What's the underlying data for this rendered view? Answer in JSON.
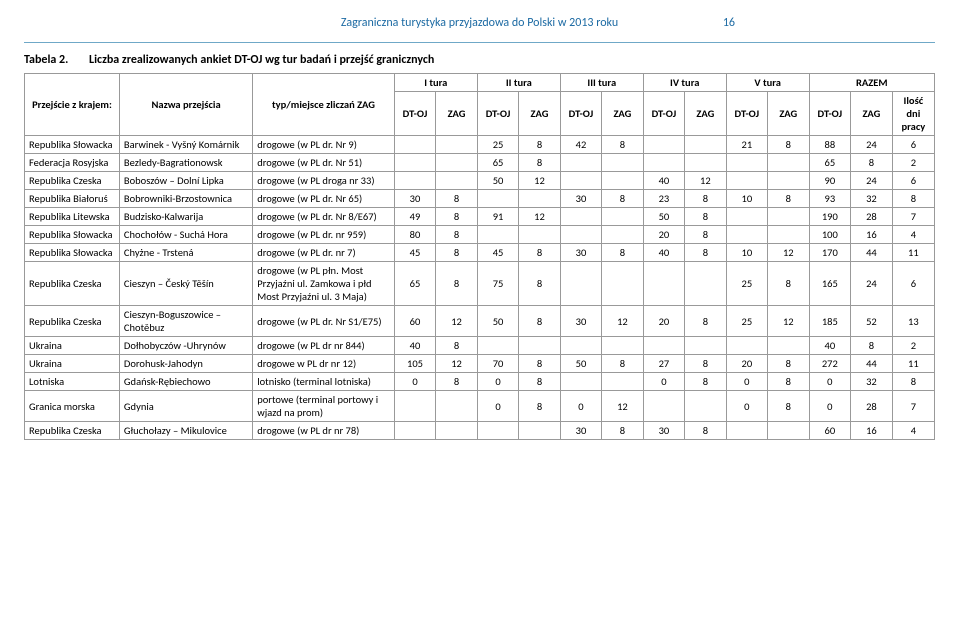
{
  "header": {
    "title": "Zagraniczna turystyka przyjazdowa do Polski w 2013 roku",
    "page_number": "16"
  },
  "caption": {
    "label": "Tabela 2.",
    "text": "Liczba zrealizowanych ankiet DT-OJ wg tur badań i przejść granicznych"
  },
  "table": {
    "tura_headers": [
      "I tura",
      "II tura",
      "III tura",
      "IV tura",
      "V tura",
      "RAZEM"
    ],
    "col_kraj": "Przejście z krajem:",
    "col_nazwa": "Nazwa przejścia",
    "col_typ": "typ/miejsce zliczań ZAG",
    "sub_dt": "DT-OJ",
    "sub_zag": "ZAG",
    "razem_ilosc": "Ilość dni pracy",
    "rows": [
      {
        "kraj": "Republika Słowacka",
        "nazwa": "Barwinek - Vyšný Komárnik",
        "typ": "drogowe (w PL dr. Nr 9)",
        "c": [
          "",
          "",
          "25",
          "8",
          "42",
          "8",
          "",
          "",
          "21",
          "8",
          "88",
          "24",
          "6"
        ]
      },
      {
        "kraj": "Federacja Rosyjska",
        "nazwa": "Bezledy-Bagrationowsk",
        "typ": "drogowe (w PL dr. Nr 51)",
        "c": [
          "",
          "",
          "65",
          "8",
          "",
          "",
          "",
          "",
          "",
          "",
          "65",
          "8",
          "2"
        ]
      },
      {
        "kraj": "Republika Czeska",
        "nazwa": "Boboszów – Dolní Lipka",
        "typ": "drogowe (w PL droga nr 33)",
        "c": [
          "",
          "",
          "50",
          "12",
          "",
          "",
          "40",
          "12",
          "",
          "",
          "90",
          "24",
          "6"
        ]
      },
      {
        "kraj": "Republika Białoruś",
        "nazwa": "Bobrowniki-Brzostownica",
        "typ": "drogowe (w PL dr. Nr 65)",
        "c": [
          "30",
          "8",
          "",
          "",
          "30",
          "8",
          "23",
          "8",
          "10",
          "8",
          "93",
          "32",
          "8"
        ]
      },
      {
        "kraj": "Republika Litewska",
        "nazwa": "Budzisko-Kalwarija",
        "typ": "drogowe (w PL dr. Nr 8/E67)",
        "c": [
          "49",
          "8",
          "91",
          "12",
          "",
          "",
          "50",
          "8",
          "",
          "",
          "190",
          "28",
          "7"
        ]
      },
      {
        "kraj": "Republika Słowacka",
        "nazwa": "Chochołów - Suchá Hora",
        "typ": "drogowe (w PL dr. nr 959)",
        "c": [
          "80",
          "8",
          "",
          "",
          "",
          "",
          "20",
          "8",
          "",
          "",
          "100",
          "16",
          "4"
        ]
      },
      {
        "kraj": "Republika Słowacka",
        "nazwa": "Chyżne - Trstená",
        "typ": "drogowe (w PL dr. nr 7)",
        "c": [
          "45",
          "8",
          "45",
          "8",
          "30",
          "8",
          "40",
          "8",
          "10",
          "12",
          "170",
          "44",
          "11"
        ]
      },
      {
        "kraj": "Republika Czeska",
        "nazwa": "Cieszyn – Český Těšín",
        "typ": "drogowe (w PL płn. Most Przyjaźni ul. Zamkowa i płd Most Przyjaźni ul. 3 Maja)",
        "c": [
          "65",
          "8",
          "75",
          "8",
          "",
          "",
          "",
          "",
          "25",
          "8",
          "165",
          "24",
          "6"
        ]
      },
      {
        "kraj": "Republika Czeska",
        "nazwa": "Cieszyn-Boguszowice – Chotěbuz",
        "typ": "drogowe (w PL dr. Nr S1/E75)",
        "c": [
          "60",
          "12",
          "50",
          "8",
          "30",
          "12",
          "20",
          "8",
          "25",
          "12",
          "185",
          "52",
          "13"
        ]
      },
      {
        "kraj": "Ukraina",
        "nazwa": "Dołhobyczów -Uhrynów",
        "typ": "drogowe (w PL dr nr 844)",
        "c": [
          "40",
          "8",
          "",
          "",
          "",
          "",
          "",
          "",
          "",
          "",
          "40",
          "8",
          "2"
        ]
      },
      {
        "kraj": "Ukraina",
        "nazwa": "Dorohusk-Jahodyn",
        "typ": "drogowe w PL dr nr 12)",
        "c": [
          "105",
          "12",
          "70",
          "8",
          "50",
          "8",
          "27",
          "8",
          "20",
          "8",
          "272",
          "44",
          "11"
        ]
      },
      {
        "kraj": "Lotniska",
        "nazwa": "Gdańsk-Rębiechowo",
        "typ": "lotnisko (terminal lotniska)",
        "c": [
          "0",
          "8",
          "0",
          "8",
          "",
          "",
          "0",
          "8",
          "0",
          "8",
          "0",
          "32",
          "8"
        ]
      },
      {
        "kraj": "Granica morska",
        "nazwa": "Gdynia",
        "typ": "portowe (terminal portowy i wjazd na prom)",
        "c": [
          "",
          "",
          "0",
          "8",
          "0",
          "12",
          "",
          "",
          "0",
          "8",
          "0",
          "28",
          "7"
        ]
      },
      {
        "kraj": "Republika Czeska",
        "nazwa": "Głuchołazy – Mikulovice",
        "typ": "drogowe (w PL dr nr 78)",
        "c": [
          "",
          "",
          "",
          "",
          "30",
          "8",
          "30",
          "8",
          "",
          "",
          "60",
          "16",
          "4"
        ]
      }
    ]
  }
}
